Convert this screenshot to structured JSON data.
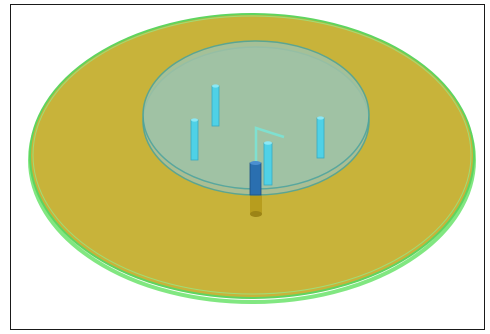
{
  "colors": {
    "background": "#ffffff",
    "frame_border": "#1a1a1a",
    "ground_plane_fill": "#c8b33a",
    "ground_plane_edge": "#6be36b",
    "upper_disc_fill": "#9fc3a8",
    "upper_disc_edge": "#4aa3a0",
    "pin_color": "#4fd1e6",
    "feed_pin_color": "#2a6fb0",
    "feed_base_color": "#b59a1c",
    "probe_wire_color": "#7fe0d0"
  },
  "scene": {
    "ground_plane": {
      "name": "ground-plane-disc",
      "shape": "ellipse"
    },
    "upper_disc": {
      "name": "patch-disc",
      "shape": "ellipse"
    },
    "shorting_pins": [
      {
        "name": "shorting-pin-top"
      },
      {
        "name": "shorting-pin-left"
      },
      {
        "name": "shorting-pin-center"
      },
      {
        "name": "shorting-pin-right"
      }
    ],
    "feed_pin": {
      "name": "feed-pin"
    },
    "probe_wire": {
      "name": "probe-wire"
    }
  }
}
